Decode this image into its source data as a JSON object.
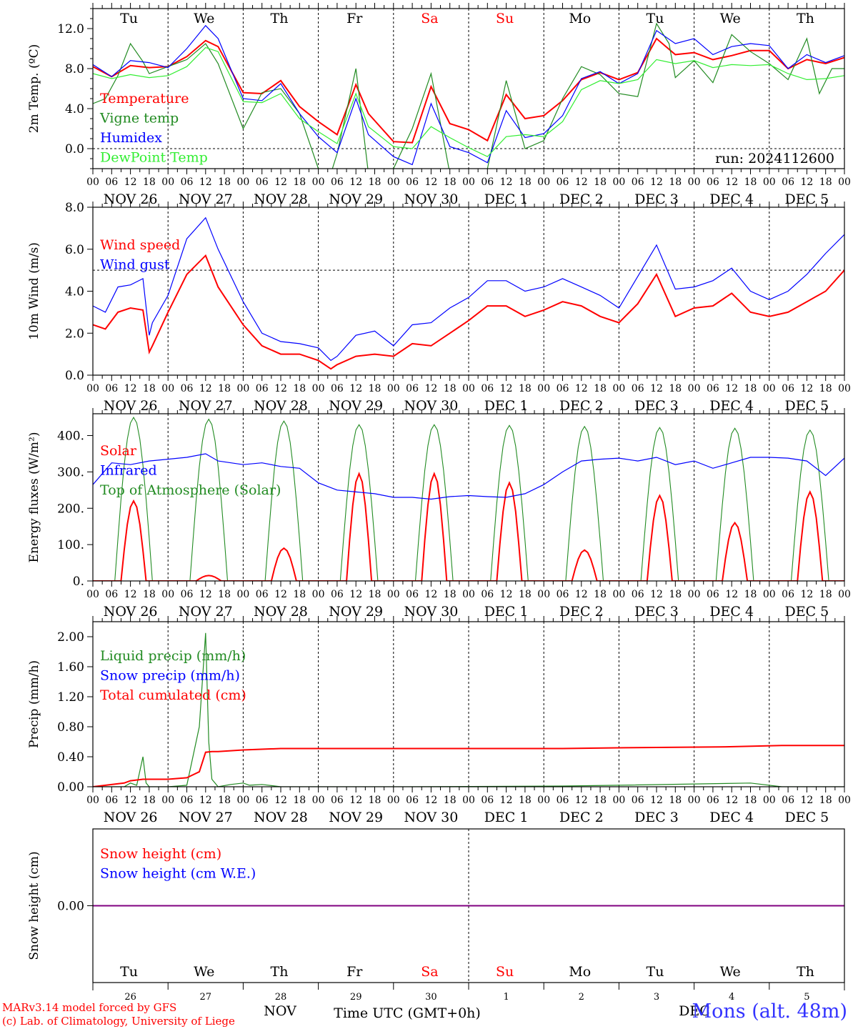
{
  "title_block": {
    "run_label": "run: 2024112600",
    "credit_line1": "MARv3.14 model forced by GFS",
    "credit_line2": "(c) Lab. of Climatology, University of Liege",
    "station": "Mons (alt. 48m)"
  },
  "axis": {
    "hour_ticks": [
      "00",
      "06",
      "12",
      "18"
    ],
    "end_tick": "00",
    "day_names": [
      "Tu",
      "We",
      "Th",
      "Fr",
      "Sa",
      "Su",
      "Mo",
      "Tu",
      "We",
      "Th"
    ],
    "weekend_indices": [
      4,
      5
    ],
    "date_labels": [
      "NOV 26",
      "NOV 27",
      "NOV 28",
      "NOV 29",
      "NOV 30",
      "DEC  1",
      "DEC  2",
      "DEC  3",
      "DEC  4",
      "DEC  5"
    ],
    "day_numbers": [
      "26",
      "27",
      "28",
      "29",
      "30",
      "1",
      "2",
      "3",
      "4",
      "5"
    ],
    "month_left": "NOV",
    "month_right": "DEC",
    "xlabel": "Time UTC (GMT+0h)"
  },
  "colors": {
    "red": "#ff0000",
    "green": "#228b22",
    "blue": "#0000ff",
    "lightgreen": "#33ee33",
    "purple": "#800080",
    "weekend": "#ff0000"
  },
  "chart_data": [
    {
      "type": "line",
      "ylabel": "2m Temp. (ºC)",
      "ylim": [
        -2.0,
        14.0
      ],
      "yticks": [
        0.0,
        4.0,
        8.0,
        12.0
      ],
      "ytick_labels": [
        "0.0",
        "4.0",
        "8.0",
        "12.0"
      ],
      "ref_line": 0.0,
      "show_day_names": true,
      "legend": [
        "Temperature",
        "Vigne temp",
        "Humidex",
        "DewPoint Temp"
      ],
      "series": [
        {
          "name": "Temperature",
          "color": "red",
          "x": [
            0,
            6,
            12,
            18,
            24,
            30,
            36,
            40,
            48,
            54,
            60,
            66,
            72,
            78,
            84,
            88,
            96,
            102,
            108,
            114,
            120,
            126,
            132,
            138,
            144,
            150,
            156,
            162,
            168,
            174,
            180,
            186,
            192,
            198,
            204,
            210,
            216,
            222,
            228,
            234,
            240
          ],
          "y": [
            8.2,
            7.2,
            8.3,
            8.1,
            8.2,
            9.2,
            10.8,
            10.2,
            5.6,
            5.5,
            6.8,
            4.2,
            2.7,
            1.4,
            6.4,
            3.5,
            0.7,
            0.6,
            6.2,
            2.5,
            1.9,
            0.8,
            5.4,
            3.0,
            3.3,
            4.8,
            6.9,
            7.6,
            6.9,
            7.6,
            11.0,
            9.4,
            9.6,
            8.9,
            9.3,
            9.8,
            9.8,
            8.0,
            8.9,
            8.5,
            9.1
          ]
        },
        {
          "name": "Vigne temp",
          "color": "green",
          "x": [
            0,
            4,
            8,
            12,
            16,
            18,
            24,
            30,
            36,
            40,
            48,
            54,
            60,
            66,
            72,
            76,
            78,
            84,
            88,
            92,
            96,
            102,
            108,
            114,
            120,
            126,
            132,
            138,
            144,
            150,
            156,
            162,
            168,
            174,
            180,
            184,
            186,
            192,
            198,
            204,
            210,
            216,
            222,
            228,
            232,
            236,
            240
          ],
          "y": [
            4.5,
            5.0,
            7.3,
            10.5,
            8.7,
            7.5,
            8.2,
            8.9,
            10.5,
            8.5,
            2.0,
            5.6,
            6.0,
            3.5,
            -2.0,
            -2.5,
            -0.5,
            8.0,
            -2.5,
            -3.0,
            -2.0,
            2.0,
            7.5,
            -2.5,
            -2.3,
            -2.0,
            6.8,
            0.0,
            0.8,
            5.0,
            8.2,
            7.4,
            5.5,
            5.2,
            12.5,
            10.5,
            7.1,
            8.8,
            6.6,
            11.4,
            9.7,
            8.5,
            6.9,
            11.0,
            5.5,
            8.0,
            8.0
          ]
        },
        {
          "name": "Humidex",
          "color": "blue",
          "x": [
            0,
            6,
            12,
            18,
            24,
            30,
            36,
            40,
            48,
            54,
            60,
            66,
            72,
            78,
            84,
            88,
            96,
            102,
            108,
            114,
            120,
            126,
            132,
            138,
            144,
            150,
            156,
            162,
            168,
            174,
            180,
            186,
            192,
            198,
            204,
            210,
            216,
            222,
            228,
            234,
            240
          ],
          "y": [
            8.4,
            7.2,
            8.8,
            8.6,
            8.1,
            10.0,
            12.3,
            11.0,
            5.0,
            4.8,
            6.5,
            3.5,
            1.2,
            -0.4,
            5.0,
            1.4,
            -0.8,
            -1.6,
            4.5,
            0.2,
            -0.4,
            -1.4,
            3.8,
            1.1,
            1.5,
            3.3,
            7.0,
            7.7,
            6.5,
            7.5,
            11.8,
            10.5,
            11.0,
            9.4,
            10.2,
            10.5,
            10.3,
            8.0,
            9.4,
            8.6,
            9.3
          ]
        },
        {
          "name": "DewPoint Temp",
          "color": "lightgreen",
          "x": [
            0,
            6,
            12,
            18,
            24,
            30,
            36,
            40,
            48,
            54,
            60,
            66,
            72,
            78,
            84,
            88,
            96,
            102,
            108,
            114,
            120,
            126,
            132,
            138,
            144,
            150,
            156,
            162,
            168,
            174,
            180,
            186,
            192,
            198,
            204,
            210,
            216,
            222,
            228,
            234,
            240
          ],
          "y": [
            7.5,
            7.0,
            7.4,
            7.1,
            7.3,
            8.2,
            10.1,
            9.7,
            4.7,
            4.6,
            5.5,
            3.0,
            1.7,
            0.5,
            5.5,
            2.2,
            0.2,
            0.0,
            2.2,
            1.1,
            0.1,
            -0.8,
            1.2,
            1.4,
            1.2,
            2.7,
            5.9,
            6.8,
            6.5,
            6.9,
            8.9,
            8.5,
            8.8,
            8.1,
            8.4,
            8.3,
            8.4,
            7.5,
            6.9,
            7.0,
            7.3
          ]
        }
      ]
    },
    {
      "type": "line",
      "ylabel": "10m Wind (m/s)",
      "ylim": [
        0.0,
        8.0
      ],
      "yticks": [
        0.0,
        2.0,
        4.0,
        6.0,
        8.0
      ],
      "ytick_labels": [
        "0.0",
        "2.0",
        "4.0",
        "6.0",
        "8.0"
      ],
      "ref_line": 5.0,
      "show_day_names": false,
      "legend": [
        "Wind speed",
        "Wind gust"
      ],
      "series": [
        {
          "name": "Wind speed",
          "color": "red",
          "x": [
            0,
            4,
            8,
            12,
            16,
            18,
            19,
            24,
            30,
            36,
            40,
            48,
            54,
            60,
            66,
            72,
            76,
            78,
            84,
            90,
            96,
            102,
            108,
            114,
            120,
            126,
            132,
            138,
            144,
            150,
            156,
            162,
            168,
            174,
            180,
            186,
            192,
            198,
            204,
            210,
            216,
            222,
            228,
            234,
            240
          ],
          "y": [
            2.4,
            2.2,
            3.0,
            3.2,
            3.1,
            1.1,
            1.4,
            3.0,
            4.8,
            5.7,
            4.2,
            2.4,
            1.4,
            1.0,
            1.0,
            0.7,
            0.3,
            0.5,
            0.9,
            1.0,
            0.9,
            1.5,
            1.4,
            2.0,
            2.6,
            3.3,
            3.3,
            2.8,
            3.1,
            3.5,
            3.3,
            2.8,
            2.5,
            3.4,
            4.8,
            2.8,
            3.2,
            3.3,
            3.9,
            3.0,
            2.8,
            3.0,
            3.5,
            4.0,
            5.0
          ]
        },
        {
          "name": "Wind gust",
          "color": "blue",
          "x": [
            0,
            4,
            8,
            12,
            16,
            18,
            19,
            24,
            30,
            36,
            40,
            48,
            54,
            60,
            66,
            72,
            76,
            78,
            84,
            90,
            96,
            102,
            108,
            114,
            120,
            126,
            132,
            138,
            144,
            150,
            156,
            162,
            168,
            174,
            180,
            186,
            192,
            198,
            204,
            210,
            216,
            222,
            228,
            234,
            240
          ],
          "y": [
            3.3,
            3.0,
            4.2,
            4.3,
            4.6,
            1.9,
            2.5,
            3.8,
            6.5,
            7.5,
            6.0,
            3.5,
            2.0,
            1.6,
            1.5,
            1.3,
            0.7,
            0.9,
            1.9,
            2.1,
            1.4,
            2.4,
            2.5,
            3.2,
            3.7,
            4.5,
            4.5,
            4.0,
            4.2,
            4.6,
            4.2,
            3.8,
            3.2,
            4.7,
            6.2,
            4.1,
            4.2,
            4.5,
            5.1,
            4.0,
            3.6,
            4.0,
            4.8,
            5.8,
            6.7
          ]
        }
      ]
    },
    {
      "type": "line",
      "ylabel": "Energy fluxes (W/m²)",
      "ylim": [
        0,
        460
      ],
      "yticks": [
        0,
        100,
        200,
        300,
        400
      ],
      "ytick_labels": [
        "0.",
        "100.",
        "200.",
        "300.",
        "400."
      ],
      "show_day_names": false,
      "legend": [
        "Solar",
        "Infrared",
        "Top of Atmosphere (Solar)"
      ],
      "solar_peaks": [
        220,
        15,
        90,
        295,
        295,
        270,
        85,
        235,
        160,
        245
      ],
      "toa_peaks": [
        450,
        445,
        440,
        430,
        430,
        428,
        425,
        422,
        420,
        415
      ],
      "series": [
        {
          "name": "Infrared",
          "color": "blue",
          "x": [
            0,
            6,
            12,
            18,
            24,
            30,
            36,
            40,
            48,
            54,
            60,
            66,
            72,
            78,
            84,
            90,
            96,
            102,
            108,
            114,
            120,
            126,
            132,
            138,
            144,
            150,
            156,
            162,
            168,
            174,
            180,
            186,
            192,
            198,
            204,
            210,
            216,
            222,
            228,
            234,
            240
          ],
          "y": [
            265,
            325,
            320,
            330,
            335,
            340,
            350,
            330,
            320,
            325,
            315,
            310,
            270,
            250,
            245,
            240,
            230,
            230,
            225,
            232,
            235,
            232,
            230,
            240,
            265,
            300,
            330,
            335,
            338,
            330,
            340,
            320,
            330,
            310,
            325,
            340,
            340,
            338,
            330,
            290,
            338
          ]
        }
      ]
    },
    {
      "type": "line",
      "ylabel": "Precip (mm/h)",
      "ylim": [
        0.0,
        2.2
      ],
      "yticks": [
        0.0,
        0.4,
        0.8,
        1.2,
        1.6,
        2.0
      ],
      "ytick_labels": [
        "0.00",
        "0.40",
        "0.80",
        "1.20",
        "1.60",
        "2.00"
      ],
      "show_day_names": false,
      "legend": [
        "Liquid precip (mm/h)",
        "Snow precip (mm/h)",
        "Total cumulated (cm)"
      ],
      "series": [
        {
          "name": "Liquid precip (mm/h)",
          "color": "green",
          "x": [
            0,
            10,
            12,
            14,
            16,
            17,
            18,
            20,
            24,
            30,
            34,
            36,
            37,
            38,
            40,
            44,
            48,
            50,
            54,
            60,
            72,
            100,
            150,
            168,
            210,
            220,
            240
          ],
          "y": [
            0,
            0,
            0.05,
            0.02,
            0.4,
            0.05,
            0,
            0,
            0,
            0.02,
            0.8,
            2.05,
            0.6,
            0.1,
            0,
            0.03,
            0.05,
            0.02,
            0.03,
            0,
            0,
            0,
            0.01,
            0.02,
            0.05,
            0,
            0
          ]
        },
        {
          "name": "Total cumulated (cm)",
          "color": "red",
          "x": [
            0,
            10,
            12,
            16,
            18,
            24,
            30,
            34,
            36,
            38,
            40,
            48,
            60,
            72,
            100,
            150,
            170,
            200,
            220,
            240
          ],
          "y": [
            0,
            0.05,
            0.08,
            0.1,
            0.1,
            0.1,
            0.12,
            0.2,
            0.46,
            0.47,
            0.47,
            0.49,
            0.51,
            0.51,
            0.51,
            0.51,
            0.52,
            0.53,
            0.55,
            0.55
          ]
        }
      ]
    },
    {
      "type": "line",
      "ylabel": "Snow height (cm)",
      "ylim": [
        -1.0,
        1.0
      ],
      "yticks": [
        0.0
      ],
      "ytick_labels": [
        "0.00"
      ],
      "show_day_names": true,
      "legend": [
        "Snow height (cm)",
        "Snow height (cm W.E.)"
      ],
      "series": [
        {
          "name": "Snow height (cm)",
          "color": "purple",
          "x": [
            0,
            240
          ],
          "y": [
            0,
            0
          ]
        }
      ]
    }
  ]
}
